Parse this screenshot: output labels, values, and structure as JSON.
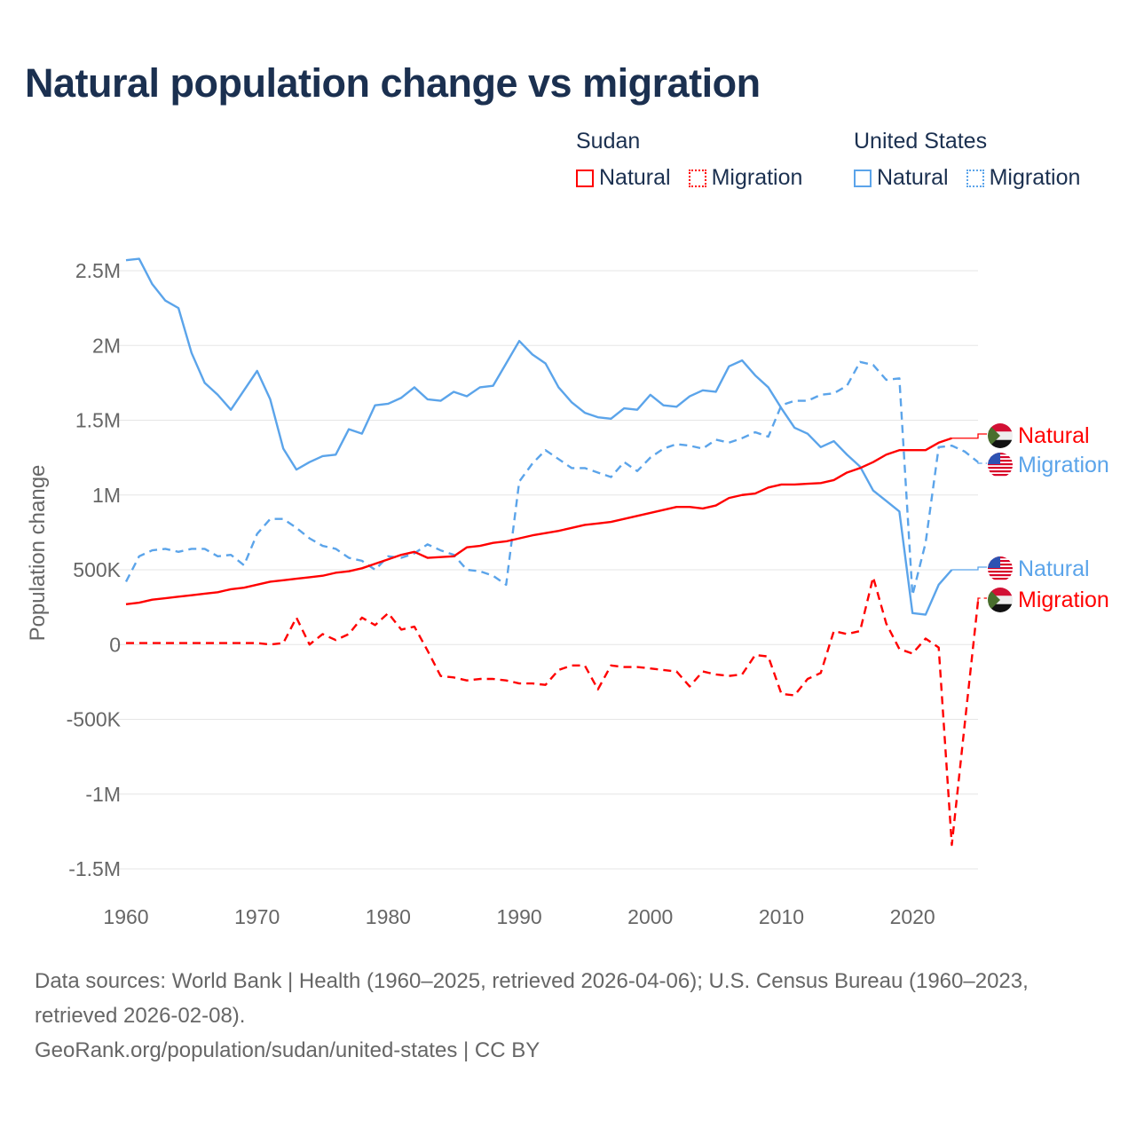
{
  "title": "Natural population change vs migration",
  "legend": {
    "groups": [
      {
        "name": "Sudan",
        "items": [
          {
            "label": "Natural",
            "style": "solid"
          },
          {
            "label": "Migration",
            "style": "dotted"
          }
        ],
        "color": "#ff0000"
      },
      {
        "name": "United States",
        "items": [
          {
            "label": "Natural",
            "style": "solid"
          },
          {
            "label": "Migration",
            "style": "dotted"
          }
        ],
        "color": "#5ba4ea"
      }
    ]
  },
  "footer": {
    "sources": "Data sources: World Bank | Health (1960–2025, retrieved 2026-04-06); U.S. Census Bureau (1960–2023, retrieved 2026-02-08).",
    "link": "GeoRank.org/population/sudan/united-states | CC BY"
  },
  "chart_data": {
    "type": "line",
    "title": "Natural population change vs migration",
    "xlabel": "",
    "ylabel": "Population change",
    "xlim": [
      1960,
      2025
    ],
    "ylim": [
      -1.5,
      2.5
    ],
    "y_unit": "millions",
    "xticks": [
      1960,
      1970,
      1980,
      1990,
      2000,
      2010,
      2020
    ],
    "xtick_labels": [
      "1960",
      "1970",
      "1980",
      "1990",
      "2000",
      "2010",
      "2020"
    ],
    "yticks": [
      2.5,
      2,
      1.5,
      1,
      0.5,
      0,
      -0.5,
      -1,
      -1.5
    ],
    "ytick_labels": [
      "2.5M",
      "2M",
      "1.5M",
      "1M",
      "500K",
      "0",
      "-500K",
      "-1M",
      "-1.5M"
    ],
    "grid": true,
    "series": [
      {
        "name": "United States Natural",
        "end_label": "Natural",
        "country": "United States",
        "color": "#5ba4ea",
        "dash": false,
        "start": 1960,
        "values": [
          2.57,
          2.58,
          2.41,
          2.3,
          2.25,
          1.95,
          1.75,
          1.67,
          1.57,
          1.7,
          1.83,
          1.64,
          1.31,
          1.17,
          1.22,
          1.26,
          1.27,
          1.44,
          1.41,
          1.6,
          1.61,
          1.65,
          1.72,
          1.64,
          1.63,
          1.69,
          1.66,
          1.72,
          1.73,
          1.88,
          2.03,
          1.94,
          1.88,
          1.72,
          1.62,
          1.55,
          1.52,
          1.51,
          1.58,
          1.57,
          1.67,
          1.6,
          1.59,
          1.66,
          1.7,
          1.69,
          1.86,
          1.9,
          1.8,
          1.72,
          1.58,
          1.45,
          1.41,
          1.32,
          1.36,
          1.27,
          1.19,
          1.03,
          0.96,
          0.89,
          0.21,
          0.2,
          0.4,
          0.5
        ]
      },
      {
        "name": "United States Migration",
        "end_label": "Migration",
        "country": "United States",
        "color": "#5ba4ea",
        "dash": true,
        "start": 1960,
        "values": [
          0.42,
          0.59,
          0.63,
          0.64,
          0.62,
          0.64,
          0.64,
          0.59,
          0.6,
          0.53,
          0.74,
          0.84,
          0.84,
          0.78,
          0.71,
          0.66,
          0.64,
          0.58,
          0.56,
          0.5,
          0.59,
          0.58,
          0.61,
          0.67,
          0.63,
          0.6,
          0.5,
          0.49,
          0.46,
          0.4,
          1.09,
          1.21,
          1.3,
          1.24,
          1.18,
          1.18,
          1.15,
          1.12,
          1.22,
          1.16,
          1.25,
          1.31,
          1.34,
          1.33,
          1.31,
          1.37,
          1.35,
          1.38,
          1.42,
          1.39,
          1.6,
          1.63,
          1.63,
          1.67,
          1.68,
          1.73,
          1.89,
          1.87,
          1.77,
          1.78,
          0.33,
          0.68,
          1.32,
          1.33,
          1.29,
          1.22
        ]
      },
      {
        "name": "Sudan Natural",
        "end_label": "Natural",
        "country": "Sudan",
        "color": "#ff0000",
        "dash": false,
        "start": 1960,
        "values": [
          0.27,
          0.28,
          0.3,
          0.31,
          0.32,
          0.33,
          0.34,
          0.35,
          0.37,
          0.38,
          0.4,
          0.42,
          0.43,
          0.44,
          0.45,
          0.46,
          0.48,
          0.49,
          0.51,
          0.54,
          0.57,
          0.6,
          0.62,
          0.58,
          0.585,
          0.59,
          0.65,
          0.66,
          0.68,
          0.69,
          0.71,
          0.73,
          0.745,
          0.76,
          0.78,
          0.8,
          0.81,
          0.82,
          0.84,
          0.86,
          0.88,
          0.9,
          0.92,
          0.92,
          0.91,
          0.93,
          0.98,
          1.0,
          1.01,
          1.05,
          1.07,
          1.07,
          1.075,
          1.08,
          1.1,
          1.15,
          1.18,
          1.22,
          1.27,
          1.3,
          1.3,
          1.3,
          1.35,
          1.38
        ]
      },
      {
        "name": "Sudan Migration",
        "end_label": "Migration",
        "country": "Sudan",
        "color": "#ff0000",
        "dash": true,
        "start": 1960,
        "values": [
          0.01,
          0.01,
          0.01,
          0.01,
          0.01,
          0.01,
          0.01,
          0.01,
          0.01,
          0.01,
          0.01,
          0.0,
          0.01,
          0.18,
          0.0,
          0.07,
          0.03,
          0.07,
          0.18,
          0.13,
          0.21,
          0.1,
          0.12,
          -0.04,
          -0.21,
          -0.22,
          -0.24,
          -0.23,
          -0.23,
          -0.24,
          -0.26,
          -0.26,
          -0.27,
          -0.17,
          -0.14,
          -0.14,
          -0.3,
          -0.14,
          -0.15,
          -0.15,
          -0.16,
          -0.17,
          -0.18,
          -0.28,
          -0.18,
          -0.2,
          -0.21,
          -0.2,
          -0.07,
          -0.08,
          -0.33,
          -0.34,
          -0.23,
          -0.19,
          0.09,
          0.07,
          0.09,
          0.45,
          0.14,
          -0.03,
          -0.06,
          0.04,
          -0.02,
          -1.34,
          -0.52,
          0.29
        ]
      }
    ]
  }
}
